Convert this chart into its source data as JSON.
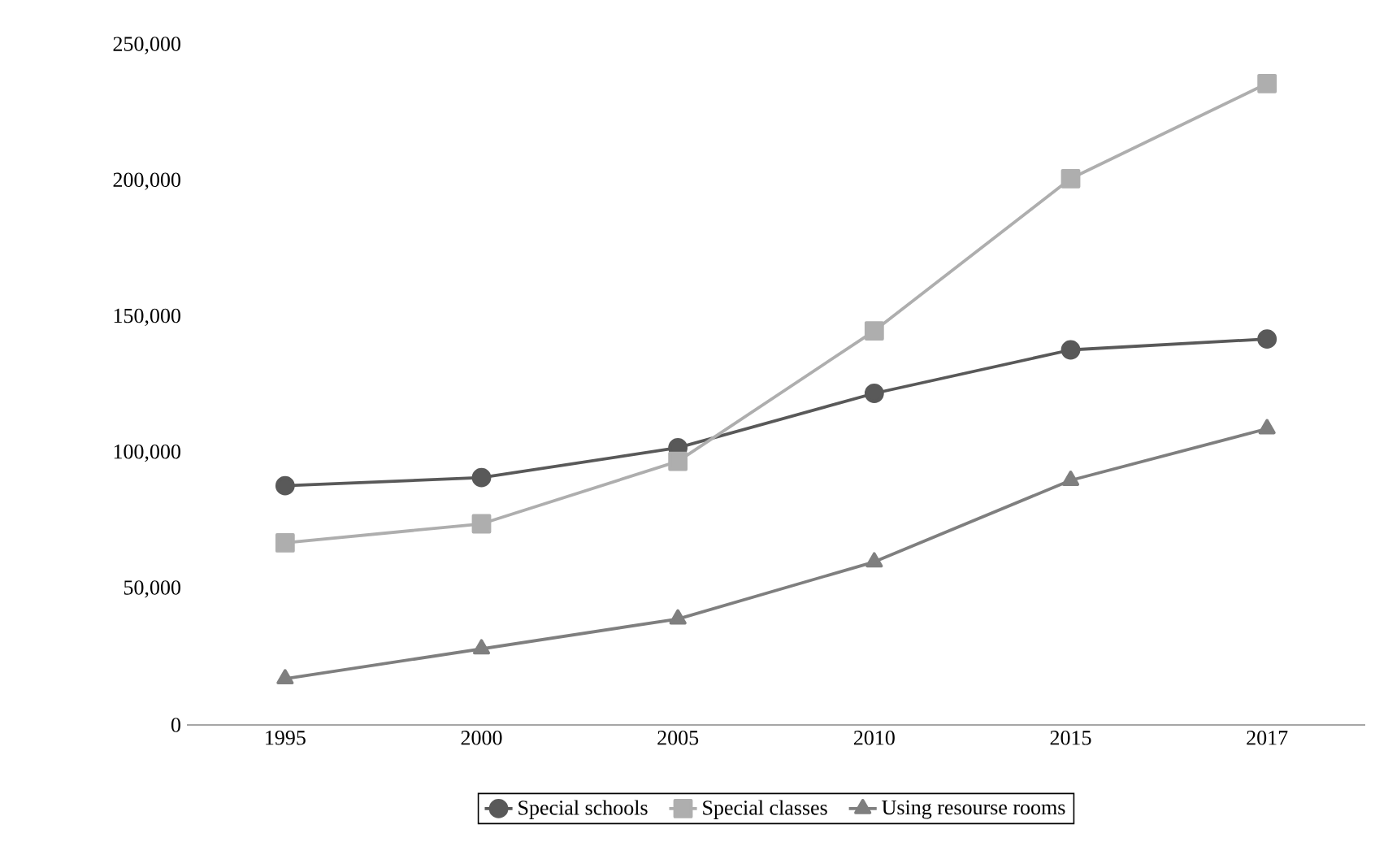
{
  "chart_data": {
    "type": "line",
    "categories": [
      "1995",
      "2000",
      "2005",
      "2010",
      "2015",
      "2017"
    ],
    "series": [
      {
        "name": "Special schools",
        "color": "#595959",
        "marker": "circle",
        "values": [
          88000,
          91000,
          102000,
          122000,
          138000,
          142000
        ]
      },
      {
        "name": "Special classes",
        "color": "#aeaeae",
        "marker": "square",
        "values": [
          67000,
          74000,
          97000,
          145000,
          201000,
          236000
        ]
      },
      {
        "name": "Using resourse rooms",
        "color": "#7f7f7f",
        "marker": "triangle",
        "values": [
          17000,
          28000,
          39000,
          60000,
          90000,
          109000
        ]
      }
    ],
    "ylim": [
      0,
      250000
    ],
    "yticks": [
      0,
      {
        "value": 50000,
        "label": "50,000"
      },
      {
        "value": 100000,
        "label": "100,000"
      },
      {
        "value": 150000,
        "label": "150,000"
      },
      {
        "value": 200000,
        "label": "200,000"
      },
      {
        "value": 250000,
        "label": "250,000"
      }
    ],
    "grid": false,
    "legend": "bottom",
    "line_style": "solid"
  }
}
